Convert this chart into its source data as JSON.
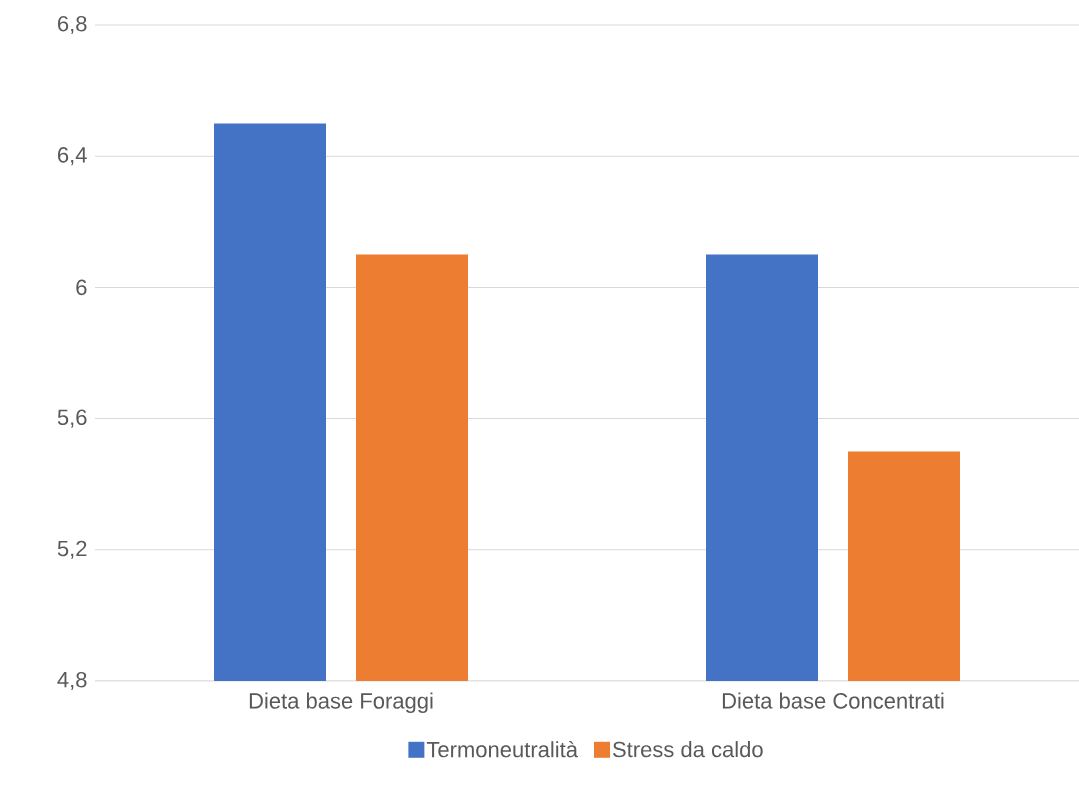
{
  "chart_data": {
    "type": "bar",
    "categories": [
      "Dieta base Foraggi",
      "Dieta base Concentrati"
    ],
    "series": [
      {
        "name": "Termoneutralità",
        "color": "#4472c4",
        "values": [
          6.5,
          6.1
        ]
      },
      {
        "name": "Stress da caldo",
        "color": "#ed7d31",
        "values": [
          6.1,
          5.5
        ]
      }
    ],
    "ylim": [
      4.8,
      6.8
    ],
    "yticks": [
      {
        "value": 4.8,
        "label": "4,8"
      },
      {
        "value": 5.2,
        "label": "5,2"
      },
      {
        "value": 5.6,
        "label": "5,6"
      },
      6,
      {
        "value": 6.4,
        "label": "6,4"
      },
      {
        "value": 6.8,
        "label": "6,8"
      }
    ],
    "grid": "y",
    "legend": "bottom"
  }
}
